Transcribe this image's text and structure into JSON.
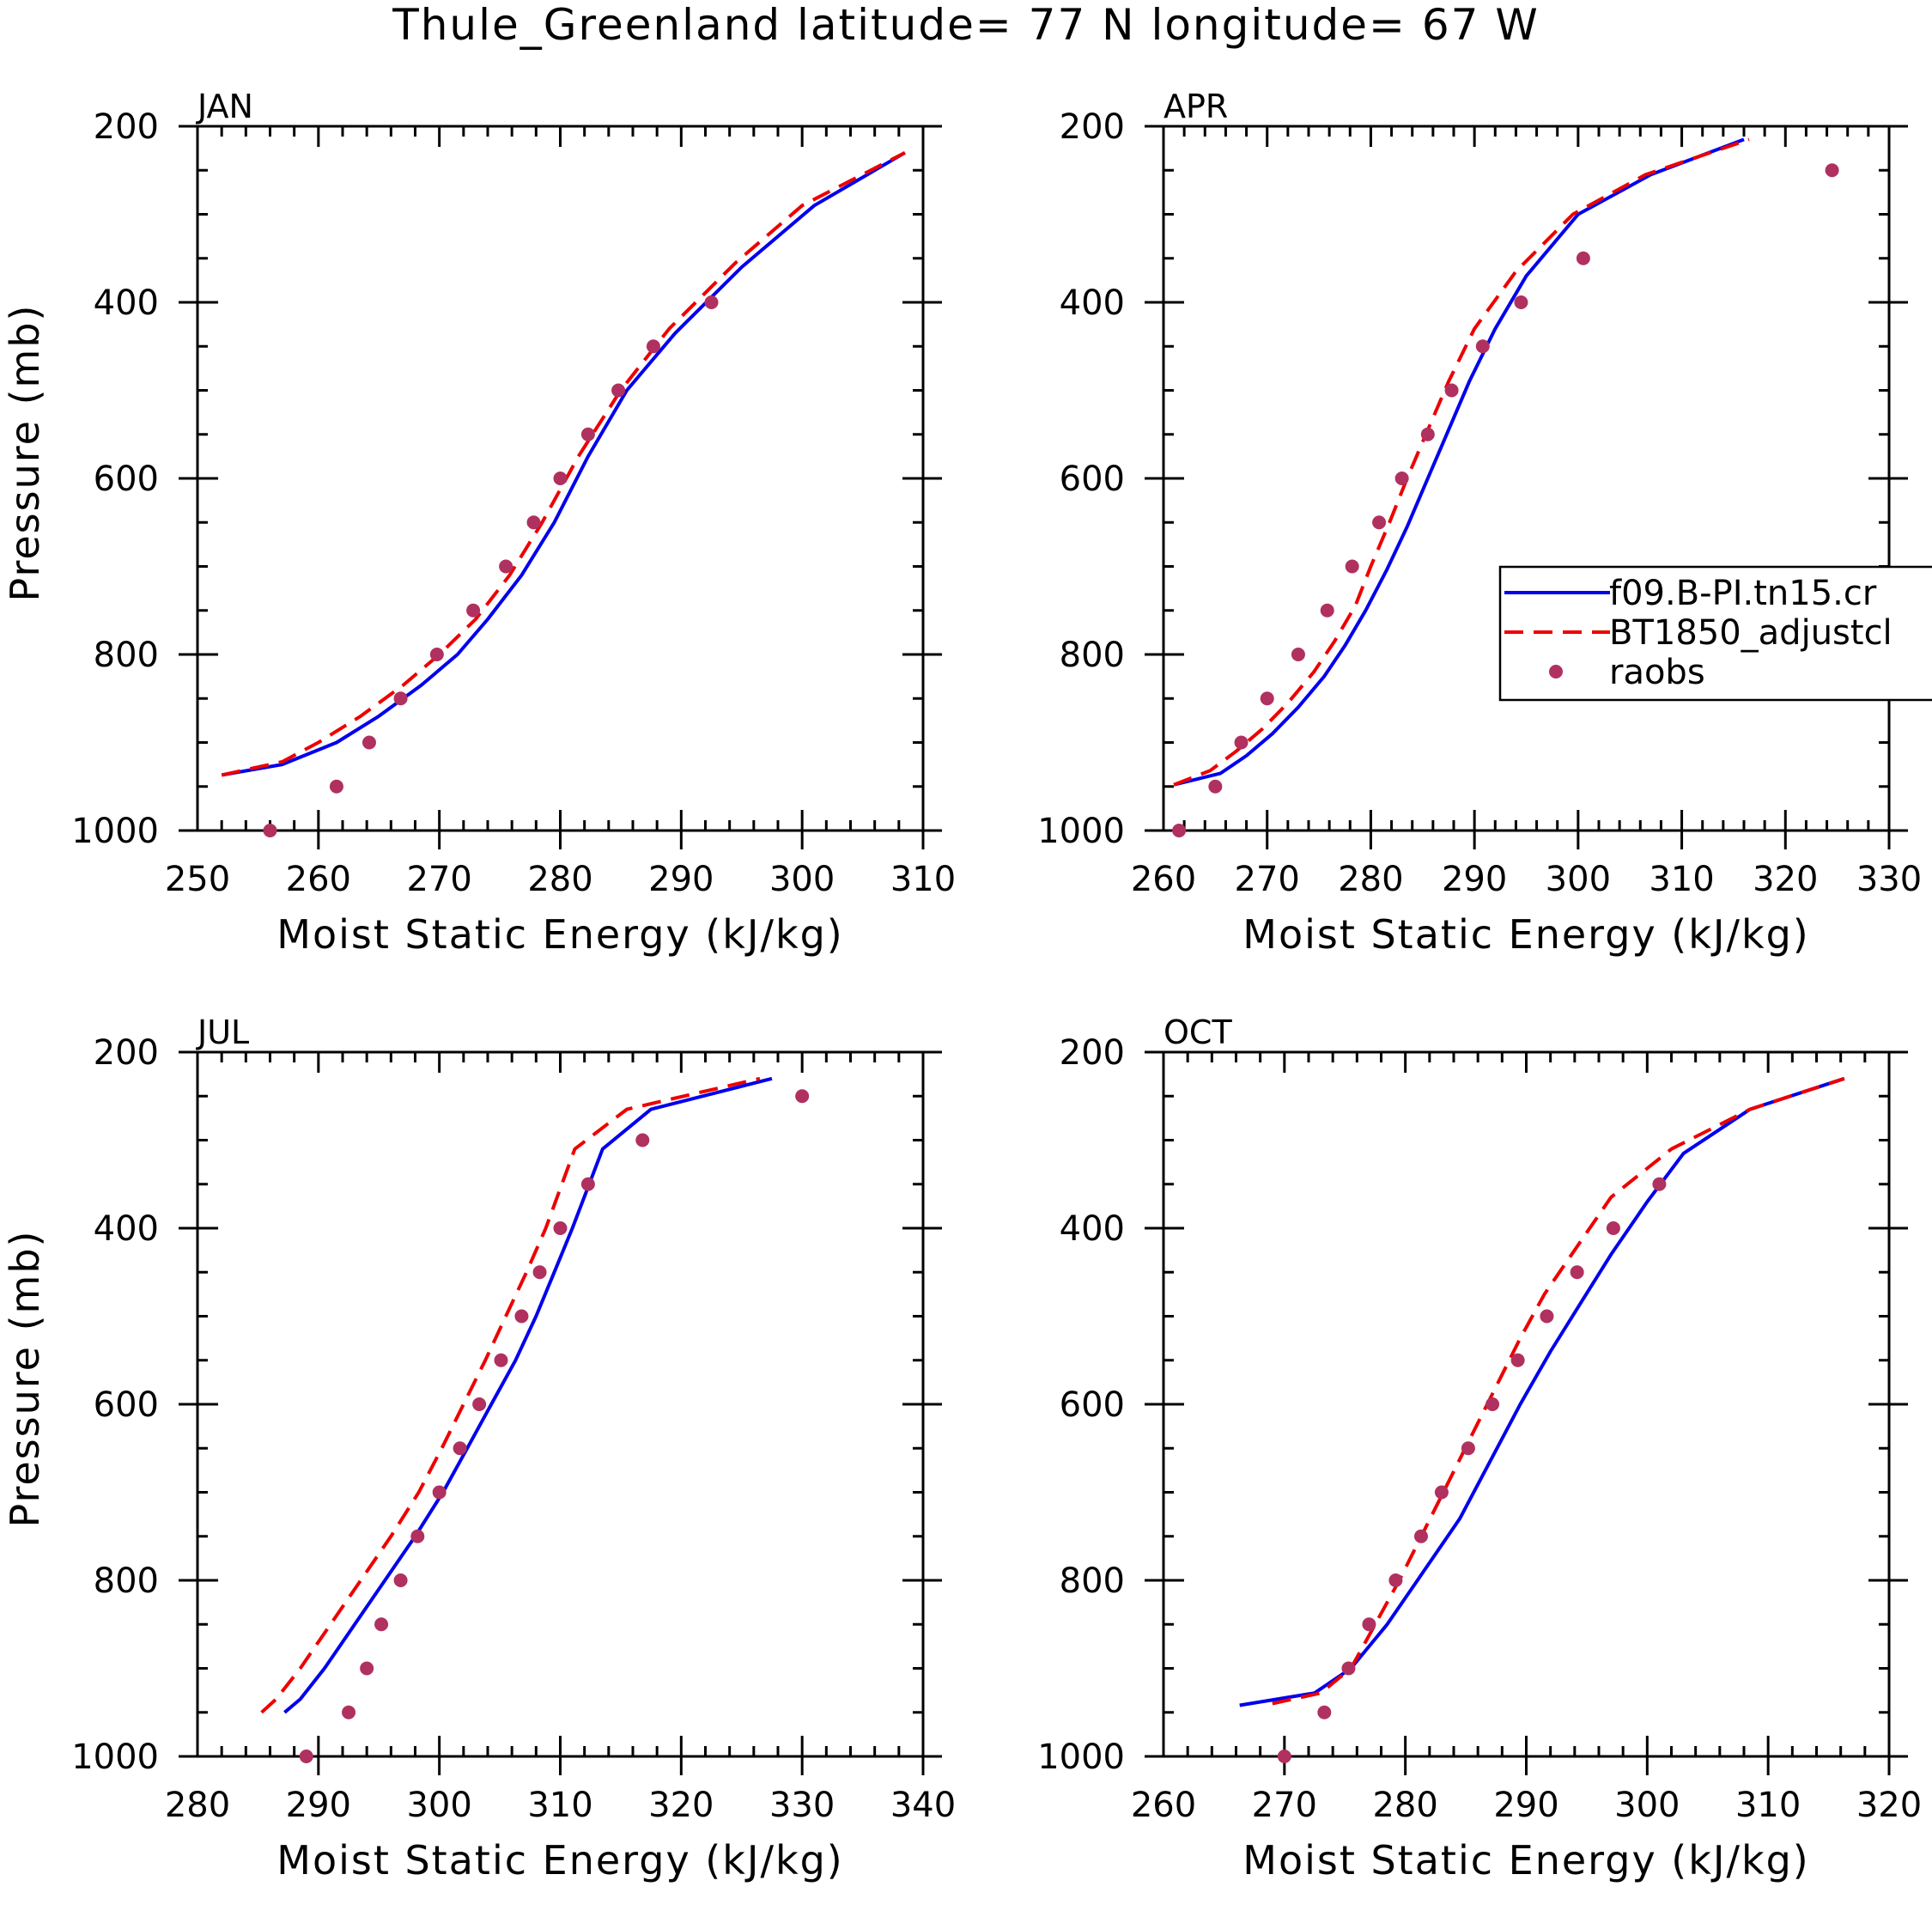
{
  "chart_data": {
    "type": "line",
    "title": "Thule_Greenland  latitude= 77 N longitude= 67 W",
    "legend": {
      "placement": "right of APR panel",
      "entries": [
        {
          "label": "f09.B-PI.tn15.cr",
          "style": "solid",
          "color": "#0000ee"
        },
        {
          "label": "BT1850_adjustcl",
          "style": "dashed",
          "color": "#ee0000"
        },
        {
          "label": "raobs",
          "style": "dot",
          "color": "#b03060"
        }
      ]
    },
    "panels": [
      {
        "name": "JAN",
        "xlabel": "Moist Static Energy (kJ/kg)",
        "ylabel": "Pressure (mb)",
        "xlim": [
          250,
          310
        ],
        "ylim": [
          1000,
          200
        ],
        "xticks": [
          250,
          260,
          270,
          280,
          290,
          300,
          310
        ],
        "yticks": [
          200,
          400,
          600,
          800,
          1000
        ],
        "series": [
          {
            "name": "f09.B-PI.tn15.cr",
            "x": [
              252,
              257,
              261.5,
              265,
              268.5,
              271.5,
              274,
              276.8,
              279.5,
              282.3,
              285.5,
              289.5,
              295,
              301,
              308.5
            ],
            "y": [
              937,
              925,
              900,
              870,
              835,
              800,
              760,
              710,
              650,
              575,
              500,
              435,
              360,
              290,
              230
            ]
          },
          {
            "name": "BT1850_adjustcl",
            "x": [
              252,
              257,
              260,
              263.5,
              267,
              270,
              273,
              275.8,
              278.5,
              281.5,
              285,
              289,
              294.5,
              300,
              308.5
            ],
            "y": [
              937,
              922,
              900,
              870,
              835,
              800,
              760,
              710,
              650,
              575,
              500,
              430,
              355,
              290,
              230
            ]
          }
        ],
        "points": {
          "name": "raobs",
          "x": [
            256,
            261.5,
            264.2,
            266.8,
            269.8,
            272.8,
            275.5,
            277.8,
            280,
            282.3,
            284.8,
            287.7,
            292.5
          ],
          "y": [
            1000,
            950,
            900,
            850,
            800,
            750,
            700,
            650,
            600,
            550,
            500,
            450,
            400
          ]
        }
      },
      {
        "name": "APR",
        "xlabel": "Moist Static Energy (kJ/kg)",
        "ylabel": "",
        "xlim": [
          260,
          330
        ],
        "ylim": [
          1000,
          200
        ],
        "xticks": [
          260,
          270,
          280,
          290,
          300,
          310,
          320,
          330
        ],
        "yticks": [
          200,
          400,
          600,
          800,
          1000
        ],
        "series": [
          {
            "name": "f09.B-PI.tn15.cr",
            "x": [
              261,
              265.5,
              268,
              270.5,
              273,
              275.5,
              277.5,
              279.5,
              281.5,
              283.5,
              285.5,
              287.5,
              289.5,
              292,
              295,
              300,
              307,
              316
            ],
            "y": [
              948,
              935,
              915,
              890,
              860,
              825,
              790,
              750,
              705,
              655,
              600,
              545,
              490,
              430,
              370,
              300,
              255,
              215
            ]
          },
          {
            "name": "BT1850_adjustcl",
            "x": [
              261,
              264.5,
              267,
              269.5,
              272,
              274.5,
              276.5,
              278.5,
              280,
              281.8,
              283.5,
              285.5,
              287.5,
              290,
              294,
              299.5,
              306.5,
              316.5
            ],
            "y": [
              948,
              932,
              910,
              885,
              855,
              820,
              785,
              745,
              700,
              650,
              600,
              545,
              490,
              430,
              365,
              300,
              255,
              215
            ]
          }
        ],
        "points": {
          "name": "raobs",
          "x": [
            261.5,
            265,
            267.5,
            270,
            273,
            275.8,
            278.2,
            280.8,
            283,
            285.5,
            287.8,
            290.8,
            294.5,
            300.5,
            324.5
          ],
          "y": [
            1000,
            950,
            900,
            850,
            800,
            750,
            700,
            650,
            600,
            550,
            500,
            450,
            400,
            350,
            250
          ]
        }
      },
      {
        "name": "JUL",
        "xlabel": "Moist Static Energy (kJ/kg)",
        "ylabel": "Pressure (mb)",
        "xlim": [
          280,
          340
        ],
        "ylim": [
          1000,
          200
        ],
        "xticks": [
          280,
          290,
          300,
          310,
          320,
          330,
          340
        ],
        "yticks": [
          200,
          400,
          600,
          800,
          1000
        ],
        "series": [
          {
            "name": "f09.B-PI.tn15.cr",
            "x": [
              287.2,
              288.5,
              290.5,
              293,
              295.5,
              298,
              300.3,
              302.3,
              304.3,
              306.3,
              308,
              309.5,
              311,
              313.5,
              317.5,
              327.5
            ],
            "y": [
              950,
              935,
              900,
              850,
              800,
              750,
              700,
              650,
              600,
              550,
              500,
              450,
              400,
              310,
              265,
              230
            ]
          },
          {
            "name": "BT1850_adjustcl",
            "x": [
              285.3,
              286.5,
              288.5,
              291,
              293.5,
              296,
              298.3,
              300.2,
              302,
              303.8,
              305.5,
              307.2,
              308.8,
              311.2,
              315.5,
              326.5
            ],
            "y": [
              950,
              935,
              900,
              850,
              800,
              750,
              700,
              650,
              600,
              550,
              500,
              450,
              400,
              310,
              265,
              230
            ]
          }
        ],
        "points": {
          "name": "raobs",
          "x": [
            289,
            292.5,
            294,
            295.2,
            296.8,
            298.2,
            300,
            301.7,
            303.3,
            305.1,
            306.8,
            308.3,
            310,
            312.3,
            316.8,
            330
          ],
          "y": [
            1000,
            950,
            900,
            850,
            800,
            750,
            700,
            650,
            600,
            550,
            500,
            450,
            400,
            350,
            300,
            250
          ]
        }
      },
      {
        "name": "OCT",
        "xlabel": "Moist Static Energy (kJ/kg)",
        "ylabel": "",
        "xlim": [
          260,
          320
        ],
        "ylim": [
          1000,
          200
        ],
        "xticks": [
          260,
          270,
          280,
          290,
          300,
          310,
          320
        ],
        "yticks": [
          200,
          400,
          600,
          800,
          1000
        ],
        "series": [
          {
            "name": "f09.B-PI.tn15.cr",
            "x": [
              266.3,
              272.5,
              275.5,
              278.5,
              281.5,
              284.5,
              287,
              289.5,
              292,
              294.5,
              297,
              300,
              303,
              308.5,
              316.3
            ],
            "y": [
              942,
              928,
              900,
              850,
              790,
              730,
              665,
              600,
              540,
              485,
              430,
              370,
              315,
              265,
              230
            ]
          },
          {
            "name": "BT1850_adjustcl",
            "x": [
              269,
              273,
              275.5,
              277.5,
              279.5,
              281.5,
              283.5,
              285.5,
              287.5,
              289.5,
              291.5,
              294,
              297,
              302,
              308.5,
              316.3
            ],
            "y": [
              940,
              928,
              900,
              850,
              800,
              745,
              690,
              635,
              580,
              525,
              475,
              425,
              365,
              310,
              265,
              230
            ]
          }
        ],
        "points": {
          "name": "raobs",
          "x": [
            270,
            273.3,
            275.3,
            277,
            279.2,
            281.3,
            283,
            285.2,
            287.2,
            289.3,
            291.7,
            294.2,
            297.2,
            301
          ],
          "y": [
            1000,
            950,
            900,
            850,
            800,
            750,
            700,
            650,
            600,
            550,
            500,
            450,
            400,
            350
          ]
        }
      }
    ]
  }
}
